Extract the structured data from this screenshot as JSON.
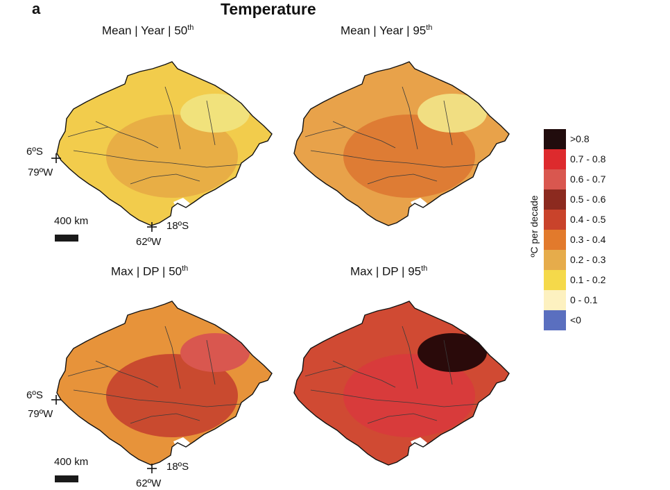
{
  "panel_letter": "a",
  "title": "Temperature",
  "maps": [
    {
      "stat": "Mean",
      "period": "Year",
      "pct": "50",
      "sup": "th",
      "fill": [
        "#f2cc4c",
        "#e8ae45",
        "#f1e27c"
      ]
    },
    {
      "stat": "Mean",
      "period": "Year",
      "pct": "95",
      "sup": "th",
      "fill": [
        "#e8a24a",
        "#de7c34",
        "#f1de82"
      ]
    },
    {
      "stat": "Max",
      "period": "DP",
      "pct": "50",
      "sup": "th",
      "fill": [
        "#e7933a",
        "#c94a2f",
        "#d9574f"
      ]
    },
    {
      "stat": "Max",
      "period": "DP",
      "pct": "95",
      "sup": "th",
      "fill": [
        "#d04a33",
        "#d83b3b",
        "#2a0a0a"
      ]
    }
  ],
  "coords": {
    "lat_west": "6ºS",
    "lon_west": "79ºW",
    "lat_south": "18ºS",
    "lon_south": "62ºW",
    "scale": "400 km"
  },
  "legend": {
    "unit": "ºC per decade",
    "items": [
      {
        "label": ">0.8",
        "color": "#210c0d"
      },
      {
        "label": "0.7 - 0.8",
        "color": "#dd2a2d"
      },
      {
        "label": "0.6 - 0.7",
        "color": "#d9574f"
      },
      {
        "label": "0.5 - 0.6",
        "color": "#8c2a1f"
      },
      {
        "label": "0.4 - 0.5",
        "color": "#c9432b"
      },
      {
        "label": "0.3 - 0.4",
        "color": "#e27a2c"
      },
      {
        "label": "0.2 - 0.3",
        "color": "#e6ac4b"
      },
      {
        "label": "0.1 - 0.2",
        "color": "#f5d94a"
      },
      {
        "label": "0 - 0.1",
        "color": "#fdf1c0"
      },
      {
        "label": "<0",
        "color": "#5a6fbf"
      }
    ]
  }
}
